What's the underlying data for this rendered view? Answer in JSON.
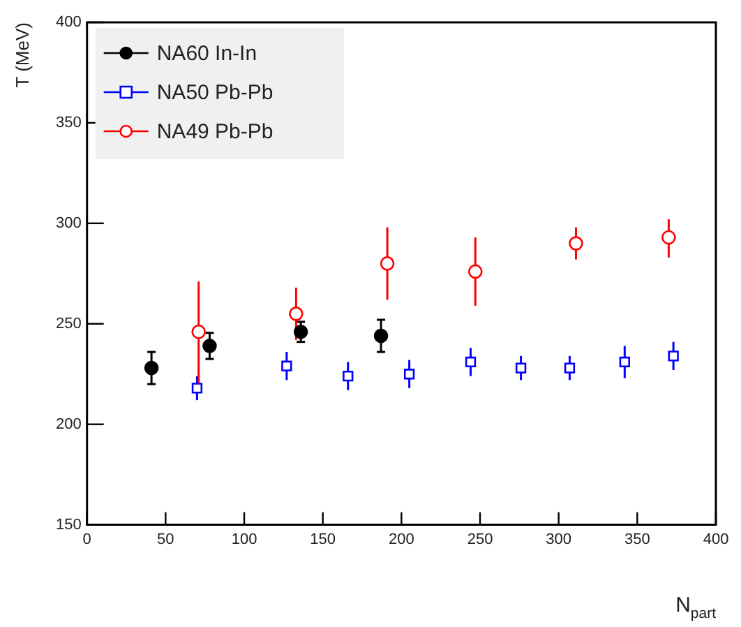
{
  "chart_data": {
    "type": "scatter",
    "xlabel": "N$_{part}$",
    "ylabel": "T (MeV)",
    "xlim": [
      0,
      400
    ],
    "xticks": [
      0,
      50,
      100,
      150,
      200,
      250,
      300,
      350,
      400
    ],
    "ylim": [
      150,
      400
    ],
    "yticks": [
      150,
      200,
      250,
      300,
      350,
      400
    ],
    "grid": false,
    "legend": "top left",
    "series": [
      {
        "name": "NA60 In-In",
        "color": "#000000",
        "marker": "circle",
        "x": [
          41,
          78,
          136,
          187
        ],
        "values": [
          228,
          239,
          246,
          244
        ],
        "errors": [
          8,
          6.5,
          5,
          8
        ]
      },
      {
        "name": "NA50 Pb-Pb",
        "color": "#0000ff",
        "marker": "square",
        "x": [
          70,
          127,
          166,
          205,
          244,
          276,
          307,
          342,
          373
        ],
        "values": [
          218,
          229,
          224,
          225,
          231,
          228,
          228,
          231,
          234
        ],
        "errors": [
          6,
          7,
          7,
          7,
          7,
          6,
          6,
          8,
          7
        ]
      },
      {
        "name": "NA49 Pb-Pb",
        "color": "#ff0000",
        "marker": "circle",
        "x": [
          71,
          133,
          191,
          247,
          311,
          370
        ],
        "values": [
          246,
          255,
          280,
          276,
          290,
          293
        ],
        "errors": [
          [
            220,
            271
          ],
          [
            242,
            268
          ],
          [
            262,
            298
          ],
          [
            259,
            293
          ],
          [
            282,
            298
          ],
          [
            283,
            302
          ]
        ]
      }
    ]
  }
}
